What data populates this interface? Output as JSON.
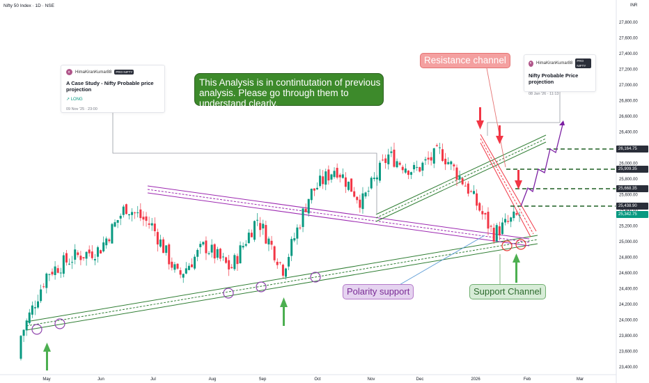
{
  "header": {
    "symbol_line": "Nifty 50 Index · 1D · NSE",
    "currency": "INR"
  },
  "y_axis": {
    "ticks": [
      "27,800.00",
      "27,600.00",
      "27,400.00",
      "27,200.00",
      "27,000.00",
      "26,800.00",
      "26,600.00",
      "26,400.00",
      "26,200.00",
      "26,000.00",
      "25,800.00",
      "25,600.00",
      "25,400.00",
      "25,200.00",
      "25,000.00",
      "24,800.00",
      "24,600.00",
      "24,400.00",
      "24,200.00",
      "24,000.00",
      "23,800.00",
      "23,600.00",
      "23,400.00"
    ]
  },
  "x_axis": {
    "ticks": [
      "May",
      "Jun",
      "Jul",
      "Aug",
      "Sep",
      "Oct",
      "Nov",
      "Dec",
      "2026",
      "Feb",
      "Mar"
    ]
  },
  "price_tags": [
    {
      "value": "26,164.75",
      "color": "#2a2e39"
    },
    {
      "value": "25,909.35",
      "color": "#2a2e39"
    },
    {
      "value": "25,668.35",
      "color": "#2a2e39"
    },
    {
      "value": "25,438.90",
      "color": "#2a2e39"
    },
    {
      "value": "25,342.75",
      "color": "#089981"
    }
  ],
  "idea_cards": [
    {
      "author": "HimaKiranKumar88",
      "badge": "PRO NIFTY",
      "title": "A Case Study - Nifty Probable price projection",
      "direction": "↗ LONG",
      "date": "09 Nov '25 · 23:00"
    },
    {
      "author": "HimaKiranKumar88",
      "badge": "PRO NIFTY",
      "title": "Nifty Probable Price projection",
      "date": "08 Jan '26 · 11:13"
    }
  ],
  "annotations": {
    "note": "This Analysis is in contintutation of previous analysis. Please go through them to understand clearly.",
    "resistance": "Resistance channel",
    "polarity": "Polarity support",
    "support": "Support Channel"
  },
  "colors": {
    "up": "#089981",
    "down": "#f23645",
    "purple_channel": "#9c27b0",
    "green_channel": "#2e7d32",
    "resistance_line": "#f23645"
  },
  "chart_data": {
    "type": "candlestick",
    "ylim": [
      23300,
      27900
    ],
    "close_series_approx": [
      [
        "Apr-end",
        23800
      ],
      [
        "May-15",
        24600
      ],
      [
        "May-end",
        24800
      ],
      [
        "Jun-15",
        24900
      ],
      [
        "Jun-end",
        25450
      ],
      [
        "Jul-15",
        25200
      ],
      [
        "Aug-05",
        24550
      ],
      [
        "Aug-20",
        24950
      ],
      [
        "Sep-03",
        24650
      ],
      [
        "Sep-20",
        25300
      ],
      [
        "Oct-01",
        24650
      ],
      [
        "Oct-20",
        25600
      ],
      [
        "Oct-30",
        25950
      ],
      [
        "Nov-05",
        25500
      ],
      [
        "Nov-25",
        26100
      ],
      [
        "Dec-10",
        25900
      ],
      [
        "Dec-30",
        26150
      ],
      [
        "Jan-12",
        25700
      ],
      [
        "Jan-22",
        25100
      ],
      [
        "Jan-28",
        25342.75
      ]
    ]
  }
}
